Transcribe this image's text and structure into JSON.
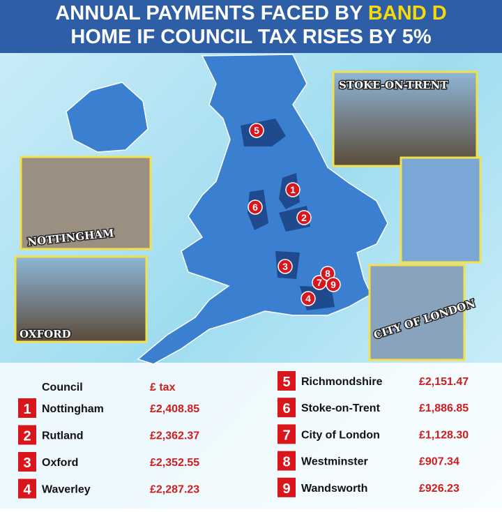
{
  "header": {
    "title_start": "ANNUAL PAYMENTS FACED BY",
    "title_highlight": "BAND D",
    "title_end": "HOME IF COUNCIL TAX RISES BY 5%"
  },
  "photos": [
    "STOKE-ON-TRENT",
    "NOTTINGHAM",
    "OXFORD",
    "CITY OF LONDON"
  ],
  "table": {
    "columns": [
      "Council",
      "£ tax"
    ],
    "rows": [
      [
        "1",
        "Nottingham",
        "£2,408.85"
      ],
      [
        "2",
        "Rutland",
        "£2,362.37"
      ],
      [
        "3",
        "Oxford",
        "£2,352.55"
      ],
      [
        "4",
        "Waverley",
        "£2,287.23"
      ],
      [
        "5",
        "Richmondshire",
        "£2,151.47"
      ],
      [
        "6",
        "Stoke-on-Trent",
        "£1,886.85"
      ],
      [
        "7",
        "City of London",
        "£1,128.30"
      ],
      [
        "8",
        "Westminster",
        "£907.34"
      ],
      [
        "9",
        "Wandsworth",
        "£926.23"
      ]
    ]
  }
}
